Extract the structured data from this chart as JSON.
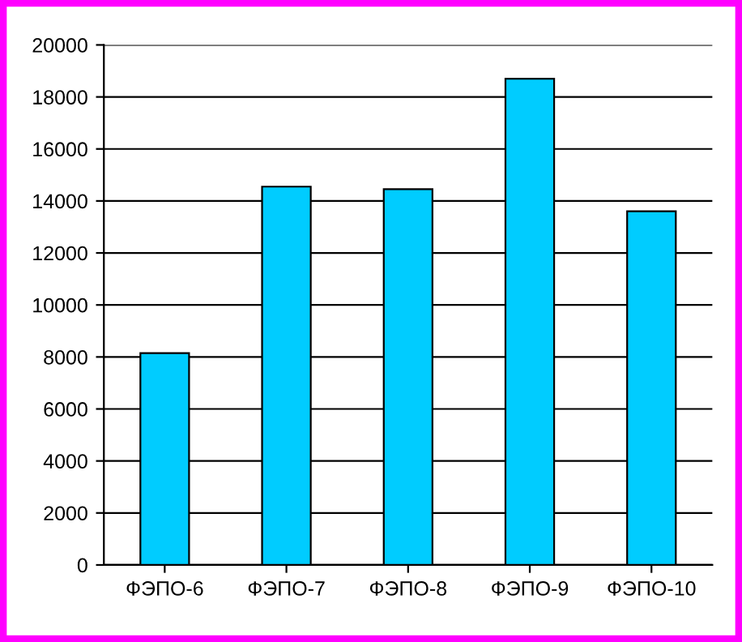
{
  "chart_data": {
    "type": "bar",
    "categories": [
      "ФЭПО-6",
      "ФЭПО-7",
      "ФЭПО-8",
      "ФЭПО-9",
      "ФЭПО-10"
    ],
    "values": [
      8150,
      14550,
      14450,
      18700,
      13600
    ],
    "color": "#00ccff",
    "ylim": [
      0,
      20000
    ],
    "yticks": [
      0,
      2000,
      4000,
      6000,
      8000,
      10000,
      12000,
      14000,
      16000,
      18000,
      20000
    ],
    "grid": "y"
  }
}
